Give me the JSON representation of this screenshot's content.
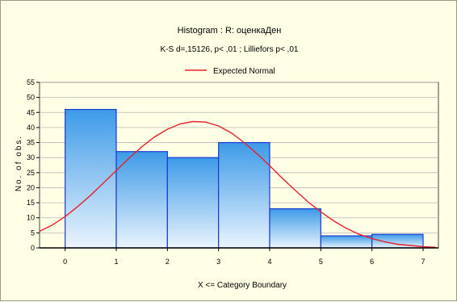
{
  "chart_data": {
    "type": "bar",
    "title": "Histogram : R: оценкаДен",
    "subtitle": "K-S d=,15126, p< ,01 ; Lilliefors p< ,01",
    "legend": {
      "label": "Expected Normal",
      "color": "#e8202a",
      "placement": "top"
    },
    "xlabel": "X <= Category Boundary",
    "ylabel": "No. of obs.",
    "xlim": [
      -0.5,
      7.3
    ],
    "ylim": [
      0,
      55
    ],
    "xticks": [
      "0",
      "1",
      "2",
      "3",
      "4",
      "5",
      "6",
      "7"
    ],
    "yticks": [
      "0",
      "5",
      "10",
      "15",
      "20",
      "25",
      "30",
      "35",
      "40",
      "45",
      "50",
      "55"
    ],
    "grid": true,
    "bins": [
      {
        "from": 0,
        "to": 1,
        "value": 46
      },
      {
        "from": 1,
        "to": 2,
        "value": 32
      },
      {
        "from": 2,
        "to": 3,
        "value": 30
      },
      {
        "from": 3,
        "to": 4,
        "value": 35
      },
      {
        "from": 4,
        "to": 5,
        "value": 13
      },
      {
        "from": 5,
        "to": 6,
        "value": 4
      },
      {
        "from": 6,
        "to": 7,
        "value": 4.5
      }
    ],
    "expected_normal": {
      "x": [
        -0.5,
        -0.25,
        0,
        0.25,
        0.5,
        0.75,
        1,
        1.25,
        1.5,
        1.75,
        2,
        2.25,
        2.5,
        2.75,
        3,
        3.25,
        3.5,
        3.75,
        4,
        4.25,
        4.5,
        4.75,
        5,
        5.25,
        5.5,
        5.75,
        6,
        6.25,
        6.5,
        6.75,
        7,
        7.25
      ],
      "y": [
        5.5,
        7.6,
        10.4,
        13.8,
        17.5,
        21.6,
        25.7,
        29.8,
        33.6,
        36.9,
        39.4,
        41.2,
        42.0,
        41.8,
        40.5,
        38.2,
        35.0,
        31.3,
        27.3,
        23.1,
        19.1,
        15.3,
        12.0,
        9.0,
        6.5,
        4.5,
        3.1,
        2.0,
        1.2,
        0.8,
        0.4,
        0.2
      ]
    },
    "colors": {
      "bar_top": "#3d9ae8",
      "bar_bottom": "#eaf4fd",
      "bar_edge": "#1a3ad0",
      "curve": "#e8202a",
      "background": "#ffffe6",
      "grid": "#b8b8b8"
    }
  }
}
